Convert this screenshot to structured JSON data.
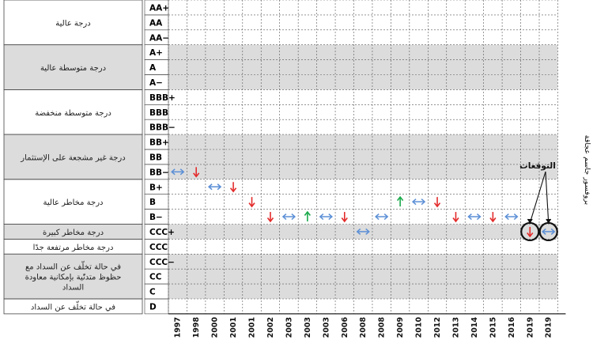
{
  "chart_data": {
    "type": "table",
    "author": "بروفسور جاسم عجاقة",
    "callout": "التوقعات",
    "ratings": [
      "AA+",
      "AA",
      "AA−",
      "A+",
      "A",
      "A−",
      "BBB+",
      "BBB",
      "BBB−",
      "BB+",
      "BB",
      "BB−",
      "B+",
      "B",
      "B−",
      "CCC+",
      "CCC",
      "CCC−",
      "CC",
      "C",
      "D"
    ],
    "categories": [
      {
        "label": "درجة عالية",
        "rows": [
          0,
          2
        ],
        "shade": false
      },
      {
        "label": "درجة متوسطة عالية",
        "rows": [
          3,
          5
        ],
        "shade": true
      },
      {
        "label": "درجة متوسطة منخفضة",
        "rows": [
          6,
          8
        ],
        "shade": false
      },
      {
        "label": "درجة غير مشجعة على الإستثمار",
        "rows": [
          9,
          11
        ],
        "shade": true
      },
      {
        "label": "درجة مخاطر عالية",
        "rows": [
          12,
          14
        ],
        "shade": false
      },
      {
        "label": "درجة مخاطر كبيرة",
        "rows": [
          15,
          15
        ],
        "shade": true
      },
      {
        "label": "درجة مخاطر مرتفعة جدًا",
        "rows": [
          16,
          16
        ],
        "shade": false
      },
      {
        "label": "في حالة تخلّف عن السداد مع حظوظ متدنّية بإمكانية معاودة السداد",
        "rows": [
          17,
          19
        ],
        "shade": true
      },
      {
        "label": "في حالة تخلّف عن السداد",
        "rows": [
          20,
          20
        ],
        "shade": false
      }
    ],
    "x": [
      "6, 1997",
      "6, 1998",
      "2000",
      "2001",
      "3, 2001",
      "0, 2002",
      "2003",
      "2003",
      "2003",
      "1, 2006",
      "2008",
      "2008",
      "2009",
      "3, 2010",
      "2012",
      "2013",
      "2014",
      "2015",
      "2016",
      "2019",
      "4, 2019"
    ],
    "highlight_columns": [
      20
    ],
    "events": [
      {
        "col": 0,
        "rating": "BB−",
        "dir": "stable"
      },
      {
        "col": 1,
        "rating": "BB−",
        "dir": "down"
      },
      {
        "col": 2,
        "rating": "B+",
        "dir": "stable"
      },
      {
        "col": 3,
        "rating": "B+",
        "dir": "down"
      },
      {
        "col": 4,
        "rating": "B",
        "dir": "down"
      },
      {
        "col": 5,
        "rating": "B−",
        "dir": "down"
      },
      {
        "col": 6,
        "rating": "B−",
        "dir": "stable"
      },
      {
        "col": 7,
        "rating": "B−",
        "dir": "up"
      },
      {
        "col": 8,
        "rating": "B−",
        "dir": "stable"
      },
      {
        "col": 9,
        "rating": "B−",
        "dir": "down"
      },
      {
        "col": 10,
        "rating": "CCC+",
        "dir": "stable"
      },
      {
        "col": 11,
        "rating": "B−",
        "dir": "stable"
      },
      {
        "col": 12,
        "rating": "B",
        "dir": "up"
      },
      {
        "col": 13,
        "rating": "B",
        "dir": "stable"
      },
      {
        "col": 14,
        "rating": "B",
        "dir": "down"
      },
      {
        "col": 15,
        "rating": "B−",
        "dir": "down"
      },
      {
        "col": 16,
        "rating": "B−",
        "dir": "stable"
      },
      {
        "col": 17,
        "rating": "B−",
        "dir": "down"
      },
      {
        "col": 18,
        "rating": "B−",
        "dir": "stable"
      },
      {
        "col": 19,
        "rating": "CCC+",
        "dir": "down",
        "circled": true
      },
      {
        "col": 20,
        "rating": "CCC+",
        "dir": "stable",
        "circled": true
      }
    ],
    "colors": {
      "down": "#e32b2b",
      "up": "#1aa94a",
      "stable": "#5b8fd6",
      "shade": "#dcdcdc",
      "grid": "#555555",
      "highlight_year": "#e32b2b"
    }
  }
}
